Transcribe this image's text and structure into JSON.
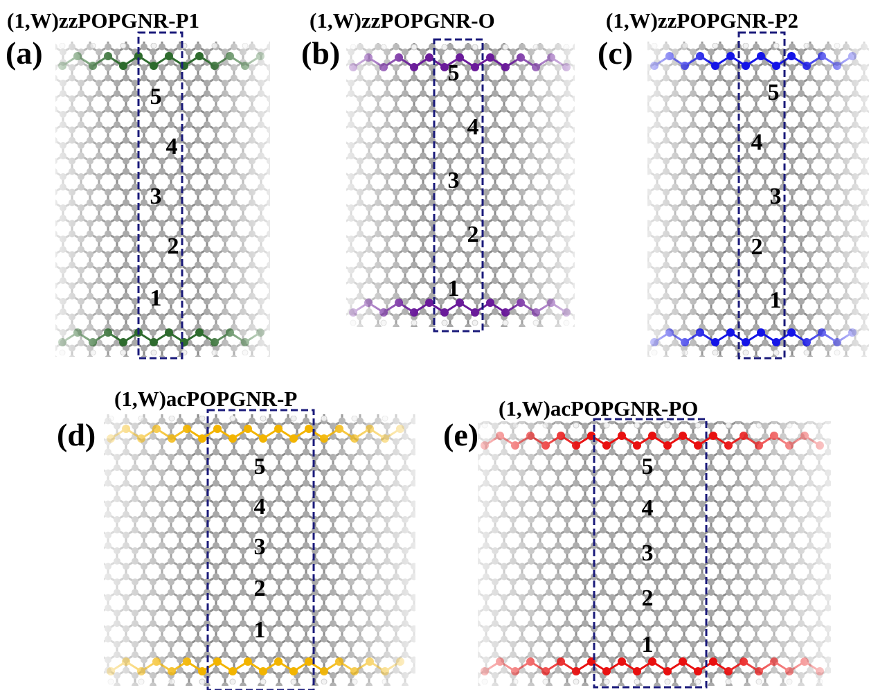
{
  "panels": [
    {
      "title": "(1,W)zzPOPGNR-P1",
      "label": "(a)",
      "numbers": [
        5,
        4,
        3,
        2,
        1
      ]
    },
    {
      "title": "(1,W)zzPOPGNR-O",
      "label": "(b)",
      "numbers": [
        5,
        4,
        3,
        2,
        1
      ]
    },
    {
      "title": "(1,W)zzPOPGNR-P2",
      "label": "(c)",
      "numbers": [
        5,
        4,
        3,
        2,
        1
      ]
    },
    {
      "title": "(1,W)acPOPGNR-P",
      "label": "(d)",
      "numbers": [
        5,
        4,
        3,
        2,
        1
      ]
    },
    {
      "title": "(1,W)acPOPGNR-PO",
      "label": "(e)",
      "numbers": [
        5,
        4,
        3,
        2,
        1
      ]
    }
  ]
}
